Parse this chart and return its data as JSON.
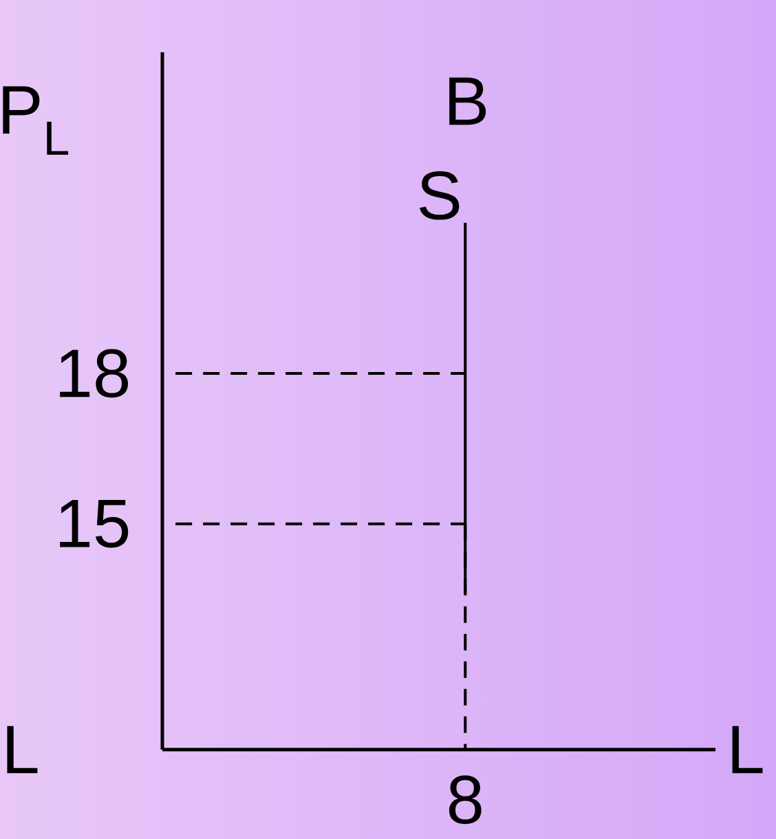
{
  "chart_data": {
    "type": "line",
    "title": "B",
    "xlabel": "L",
    "ylabel": "P$_{L}$",
    "categories": [
      null,
      null,
      null,
      null,
      null,
      null,
      null,
      null,
      null,
      null,
      null,
      "8",
      null,
      null,
      null,
      null,
      null,
      null,
      null,
      null,
      null
    ],
    "ylim": [
      10.5,
      24.4
    ],
    "yticks": [
      15,
      18
    ],
    "grid": false,
    "legend": false,
    "marker": "none",
    "annotations": [
      "L"
    ],
    "series": [
      {
        "name": "S",
        "color": "#000000",
        "x": [
          "8",
          "8"
        ],
        "values": [
          21,
          13.6
        ],
        "line_style": "solid"
      },
      {
        "color": "#000000",
        "values": [
          18,
          18,
          18,
          18,
          18,
          18,
          18,
          18,
          18,
          18,
          18,
          18,
          null,
          null,
          null,
          null,
          null,
          null,
          null,
          null,
          null
        ],
        "line_style": "dashed"
      },
      {
        "color": "#000000",
        "values": [
          15,
          15,
          15,
          15,
          15,
          15,
          15,
          15,
          15,
          15,
          15,
          15,
          null,
          null,
          null,
          null,
          null,
          null,
          null,
          null,
          null
        ],
        "line_style": "dashed"
      },
      {
        "color": "#000000",
        "x": [
          "8",
          "8"
        ],
        "values": [
          15,
          10.5
        ],
        "line_style": "dashed"
      }
    ]
  }
}
